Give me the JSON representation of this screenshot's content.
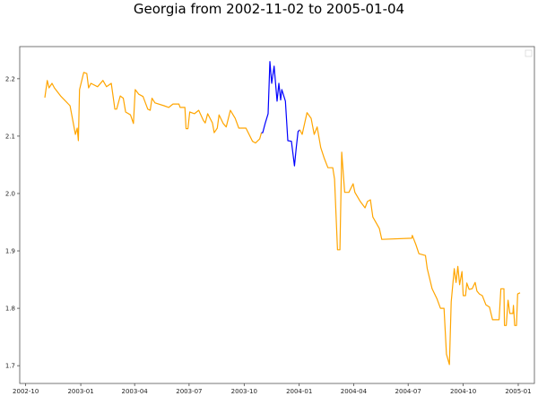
{
  "chart_data": {
    "type": "line",
    "title": "Georgia from 2002-11-02 to 2005-01-04",
    "xlabel": "",
    "ylabel": "",
    "xlim": [
      "2002-09-21",
      "2005-01-28"
    ],
    "ylim": [
      1.669,
      2.256
    ],
    "x_ticks": [
      "2002-10",
      "2003-01",
      "2003-04",
      "2003-07",
      "2003-10",
      "2004-01",
      "2004-04",
      "2004-07",
      "2004-10",
      "2005-01"
    ],
    "y_ticks": [
      "1.7",
      "1.8",
      "1.9",
      "2.0",
      "2.1",
      "2.2"
    ],
    "grid": false,
    "legend": {
      "placement": "top-right",
      "entries": []
    },
    "series": [
      {
        "color": "#ffa500",
        "points": [
          [
            "2002-11-02",
            2.167
          ],
          [
            "2002-11-06",
            2.197
          ],
          [
            "2002-11-09",
            2.184
          ],
          [
            "2002-11-14",
            2.192
          ],
          [
            "2002-11-18",
            2.184
          ],
          [
            "2002-11-29",
            2.169
          ],
          [
            "2002-12-14",
            2.153
          ],
          [
            "2002-12-23",
            2.103
          ],
          [
            "2002-12-26",
            2.114
          ],
          [
            "2002-12-28",
            2.092
          ],
          [
            "2002-12-30",
            2.181
          ],
          [
            "2003-01-06",
            2.211
          ],
          [
            "2003-01-11",
            2.209
          ],
          [
            "2003-01-14",
            2.184
          ],
          [
            "2003-01-18",
            2.192
          ],
          [
            "2003-01-29",
            2.186
          ],
          [
            "2003-02-07",
            2.197
          ],
          [
            "2003-02-13",
            2.186
          ],
          [
            "2003-02-21",
            2.192
          ],
          [
            "2003-02-27",
            2.147
          ],
          [
            "2003-03-02",
            2.147
          ],
          [
            "2003-03-08",
            2.17
          ],
          [
            "2003-03-13",
            2.166
          ],
          [
            "2003-03-17",
            2.142
          ],
          [
            "2003-03-25",
            2.137
          ],
          [
            "2003-03-30",
            2.122
          ],
          [
            "2003-04-02",
            2.181
          ],
          [
            "2003-04-08",
            2.173
          ],
          [
            "2003-04-15",
            2.169
          ],
          [
            "2003-04-23",
            2.147
          ],
          [
            "2003-04-27",
            2.145
          ],
          [
            "2003-04-30",
            2.166
          ],
          [
            "2003-05-05",
            2.158
          ],
          [
            "2003-05-20",
            2.153
          ],
          [
            "2003-05-28",
            2.15
          ],
          [
            "2003-06-04",
            2.156
          ],
          [
            "2003-06-14",
            2.156
          ],
          [
            "2003-06-16",
            2.15
          ],
          [
            "2003-06-24",
            2.15
          ],
          [
            "2003-06-26",
            2.113
          ],
          [
            "2003-06-29",
            2.113
          ],
          [
            "2003-07-02",
            2.142
          ],
          [
            "2003-07-10",
            2.139
          ],
          [
            "2003-07-17",
            2.145
          ],
          [
            "2003-07-25",
            2.127
          ],
          [
            "2003-07-28",
            2.123
          ],
          [
            "2003-08-01",
            2.139
          ],
          [
            "2003-08-09",
            2.123
          ],
          [
            "2003-08-12",
            2.106
          ],
          [
            "2003-08-17",
            2.114
          ],
          [
            "2003-08-20",
            2.137
          ],
          [
            "2003-08-27",
            2.122
          ],
          [
            "2003-09-01",
            2.116
          ],
          [
            "2003-09-08",
            2.145
          ],
          [
            "2003-09-16",
            2.131
          ],
          [
            "2003-09-22",
            2.114
          ],
          [
            "2003-10-04",
            2.114
          ],
          [
            "2003-10-15",
            2.091
          ],
          [
            "2003-10-20",
            2.088
          ],
          [
            "2003-10-27",
            2.095
          ],
          [
            "2003-10-30",
            2.106
          ]
        ]
      },
      {
        "color": "#0000ff",
        "points": [
          [
            "2003-10-30",
            2.106
          ],
          [
            "2003-11-01",
            2.106
          ],
          [
            "2003-11-05",
            2.122
          ],
          [
            "2003-11-10",
            2.139
          ],
          [
            "2003-11-13",
            2.23
          ],
          [
            "2003-11-16",
            2.192
          ],
          [
            "2003-11-20",
            2.222
          ],
          [
            "2003-11-25",
            2.161
          ],
          [
            "2003-11-28",
            2.192
          ],
          [
            "2003-12-01",
            2.163
          ],
          [
            "2003-12-03",
            2.181
          ],
          [
            "2003-12-09",
            2.161
          ],
          [
            "2003-12-13",
            2.092
          ],
          [
            "2003-12-19",
            2.091
          ],
          [
            "2003-12-24",
            2.048
          ],
          [
            "2003-12-27",
            2.08
          ],
          [
            "2003-12-30",
            2.108
          ],
          [
            "2004-01-02",
            2.111
          ]
        ]
      },
      {
        "color": "#ffa500",
        "points": [
          [
            "2004-01-02",
            2.111
          ],
          [
            "2004-01-06",
            2.103
          ],
          [
            "2004-01-14",
            2.141
          ],
          [
            "2004-01-21",
            2.131
          ],
          [
            "2004-01-26",
            2.103
          ],
          [
            "2004-01-31",
            2.116
          ],
          [
            "2004-02-06",
            2.08
          ],
          [
            "2004-02-12",
            2.061
          ],
          [
            "2004-02-18",
            2.045
          ],
          [
            "2004-02-26",
            2.045
          ],
          [
            "2004-02-29",
            2.025
          ],
          [
            "2004-03-05",
            1.902
          ],
          [
            "2004-03-09",
            1.902
          ],
          [
            "2004-03-12",
            2.072
          ],
          [
            "2004-03-17",
            2.002
          ],
          [
            "2004-03-24",
            2.002
          ],
          [
            "2004-03-31",
            2.017
          ],
          [
            "2004-04-03",
            2.002
          ],
          [
            "2004-04-12",
            1.986
          ],
          [
            "2004-04-20",
            1.975
          ],
          [
            "2004-04-24",
            1.986
          ],
          [
            "2004-04-29",
            1.989
          ],
          [
            "2004-05-03",
            1.959
          ],
          [
            "2004-05-14",
            1.939
          ],
          [
            "2004-05-18",
            1.92
          ],
          [
            "2004-07-07",
            1.922
          ],
          [
            "2004-07-08",
            1.927
          ],
          [
            "2004-07-14",
            1.911
          ],
          [
            "2004-07-19",
            1.895
          ],
          [
            "2004-07-30",
            1.892
          ],
          [
            "2004-08-02",
            1.869
          ],
          [
            "2004-08-10",
            1.834
          ],
          [
            "2004-08-18",
            1.817
          ],
          [
            "2004-08-24",
            1.8
          ],
          [
            "2004-08-30",
            1.8
          ],
          [
            "2004-09-03",
            1.72
          ],
          [
            "2004-09-08",
            1.702
          ],
          [
            "2004-09-11",
            1.811
          ],
          [
            "2004-09-16",
            1.869
          ],
          [
            "2004-09-19",
            1.845
          ],
          [
            "2004-09-22",
            1.873
          ],
          [
            "2004-09-25",
            1.841
          ],
          [
            "2004-09-29",
            1.864
          ],
          [
            "2004-10-01",
            1.822
          ],
          [
            "2004-10-05",
            1.822
          ],
          [
            "2004-10-07",
            1.844
          ],
          [
            "2004-10-11",
            1.833
          ],
          [
            "2004-10-16",
            1.834
          ],
          [
            "2004-10-21",
            1.845
          ],
          [
            "2004-10-24",
            1.83
          ],
          [
            "2004-10-28",
            1.825
          ],
          [
            "2004-11-02",
            1.822
          ],
          [
            "2004-11-08",
            1.806
          ],
          [
            "2004-11-14",
            1.802
          ],
          [
            "2004-11-19",
            1.78
          ],
          [
            "2004-11-30",
            1.78
          ],
          [
            "2004-12-03",
            1.834
          ],
          [
            "2004-12-08",
            1.834
          ],
          [
            "2004-12-09",
            1.77
          ],
          [
            "2004-12-12",
            1.77
          ],
          [
            "2004-12-15",
            1.814
          ],
          [
            "2004-12-18",
            1.791
          ],
          [
            "2004-12-23",
            1.791
          ],
          [
            "2004-12-24",
            1.805
          ],
          [
            "2004-12-26",
            1.77
          ],
          [
            "2004-12-29",
            1.77
          ],
          [
            "2004-12-31",
            1.825
          ],
          [
            "2005-01-04",
            1.827
          ]
        ]
      }
    ]
  }
}
